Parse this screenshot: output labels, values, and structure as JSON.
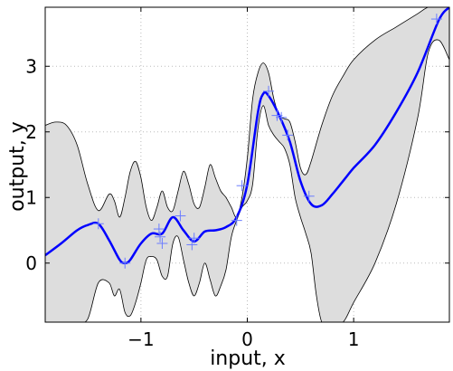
{
  "chart_data": {
    "type": "line",
    "xlabel": "input, x",
    "ylabel": "output, y",
    "xlim": [
      -1.9,
      1.9
    ],
    "ylim": [
      -0.9,
      3.9
    ],
    "xticks": [
      -1,
      0,
      1
    ],
    "xtick_labels": [
      "−1",
      "0",
      "1"
    ],
    "yticks": [
      0,
      1,
      2,
      3
    ],
    "ytick_labels": [
      "0",
      "1",
      "2",
      "3"
    ],
    "grid": true,
    "colors": {
      "mean": "#0000ff",
      "band_fill": "#dddddd",
      "band_edge": "#000000",
      "points": "#6a7cff"
    },
    "series": [
      {
        "role": "mean",
        "x": [
          -1.9,
          -1.75,
          -1.6,
          -1.5,
          -1.4,
          -1.3,
          -1.2,
          -1.15,
          -1.1,
          -1.0,
          -0.9,
          -0.8,
          -0.7,
          -0.6,
          -0.5,
          -0.4,
          -0.3,
          -0.2,
          -0.1,
          0.0,
          0.1,
          0.15,
          0.2,
          0.3,
          0.4,
          0.5,
          0.6,
          0.7,
          0.8,
          0.9,
          1.0,
          1.2,
          1.4,
          1.6,
          1.8,
          1.9
        ],
        "y": [
          0.12,
          0.3,
          0.5,
          0.58,
          0.6,
          0.35,
          0.05,
          0.0,
          0.05,
          0.3,
          0.45,
          0.45,
          0.7,
          0.5,
          0.33,
          0.48,
          0.5,
          0.55,
          0.7,
          1.2,
          2.3,
          2.58,
          2.55,
          2.25,
          1.85,
          1.25,
          0.9,
          0.88,
          1.05,
          1.25,
          1.45,
          1.8,
          2.3,
          2.9,
          3.7,
          4.0
        ]
      },
      {
        "role": "band-upper",
        "x": [
          -1.9,
          -1.8,
          -1.7,
          -1.6,
          -1.5,
          -1.4,
          -1.3,
          -1.25,
          -1.2,
          -1.15,
          -1.1,
          -1.05,
          -1.0,
          -0.95,
          -0.9,
          -0.85,
          -0.8,
          -0.75,
          -0.7,
          -0.65,
          -0.6,
          -0.55,
          -0.5,
          -0.45,
          -0.4,
          -0.35,
          -0.3,
          -0.25,
          -0.2,
          -0.15,
          -0.1,
          -0.05,
          0.0,
          0.05,
          0.1,
          0.15,
          0.2,
          0.25,
          0.3,
          0.35,
          0.4,
          0.45,
          0.5,
          0.55,
          0.6,
          0.7,
          0.8,
          0.9,
          1.0,
          1.2,
          1.4,
          1.6,
          1.7,
          1.8,
          1.9
        ],
        "y": [
          2.1,
          2.15,
          2.1,
          1.8,
          1.2,
          0.8,
          1.05,
          0.95,
          0.7,
          1.0,
          1.4,
          1.55,
          1.3,
          0.85,
          0.65,
          0.85,
          1.1,
          0.85,
          0.8,
          1.1,
          1.4,
          1.2,
          0.9,
          0.85,
          1.15,
          1.5,
          1.3,
          1.1,
          1.0,
          0.85,
          0.7,
          1.0,
          1.6,
          2.5,
          2.9,
          3.05,
          2.9,
          2.5,
          2.25,
          2.2,
          2.15,
          1.85,
          1.45,
          1.35,
          1.55,
          2.1,
          2.55,
          2.85,
          3.1,
          3.4,
          3.6,
          3.8,
          3.9,
          3.9,
          3.9
        ]
      },
      {
        "role": "band-lower",
        "x": [
          -1.9,
          -1.8,
          -1.7,
          -1.6,
          -1.5,
          -1.4,
          -1.3,
          -1.25,
          -1.2,
          -1.15,
          -1.1,
          -1.05,
          -1.0,
          -0.95,
          -0.9,
          -0.85,
          -0.8,
          -0.75,
          -0.7,
          -0.65,
          -0.6,
          -0.55,
          -0.5,
          -0.45,
          -0.4,
          -0.35,
          -0.3,
          -0.25,
          -0.2,
          -0.15,
          -0.1,
          -0.05,
          0.0,
          0.05,
          0.1,
          0.15,
          0.2,
          0.25,
          0.3,
          0.35,
          0.4,
          0.45,
          0.5,
          0.55,
          0.6,
          0.65,
          0.7,
          0.75,
          0.8,
          0.9,
          1.0,
          1.2,
          1.4,
          1.6,
          1.7,
          1.8,
          1.9
        ],
        "y": [
          -0.9,
          -1.2,
          -1.3,
          -1.2,
          -0.85,
          -0.3,
          -0.3,
          -0.5,
          -0.4,
          -0.75,
          -0.8,
          -0.6,
          -0.3,
          0.05,
          0.1,
          0.05,
          -0.2,
          -0.2,
          0.3,
          0.4,
          0.05,
          -0.3,
          -0.5,
          -0.3,
          0.0,
          -0.25,
          -0.5,
          -0.35,
          -0.1,
          0.4,
          0.65,
          0.85,
          0.95,
          1.2,
          2.05,
          2.4,
          2.1,
          1.95,
          1.85,
          1.75,
          1.5,
          1.0,
          0.7,
          0.45,
          0.15,
          -0.5,
          -0.9,
          -1.15,
          -1.2,
          -1.0,
          -0.6,
          0.0,
          0.9,
          2.2,
          3.2,
          3.4,
          3.1
        ]
      },
      {
        "role": "observations",
        "x": [
          -1.4,
          -1.15,
          -0.83,
          -0.82,
          -0.8,
          -0.63,
          -0.52,
          -0.5,
          -0.1,
          -0.05,
          0.2,
          0.28,
          0.32,
          0.38,
          0.58,
          1.78
        ],
        "y": [
          0.6,
          0.0,
          0.52,
          0.4,
          0.3,
          0.72,
          0.28,
          0.38,
          0.65,
          1.18,
          2.62,
          2.25,
          2.22,
          1.95,
          1.02,
          3.72
        ]
      }
    ]
  }
}
